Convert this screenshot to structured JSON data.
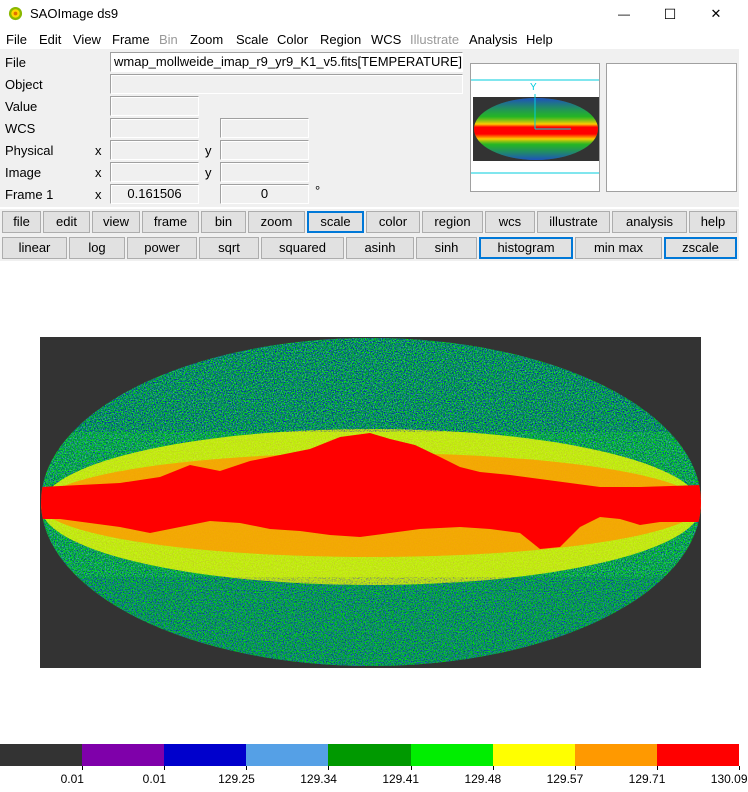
{
  "window": {
    "title": "SAOImage ds9",
    "minimize_glyph": "—",
    "maximize_glyph": "☐",
    "close_glyph": "✕"
  },
  "menu": [
    "File",
    "Edit",
    "View",
    "Frame",
    "Bin",
    "Zoom",
    "Scale",
    "Color",
    "Region",
    "WCS",
    "Illustrate",
    "Analysis",
    "Help"
  ],
  "menu_disabled": [
    "Bin",
    "Illustrate"
  ],
  "info": {
    "file_label": "File",
    "file_value": "wmap_mollweide_imap_r9_yr9_K1_v5.fits[TEMPERATURE]",
    "object_label": "Object",
    "object_value": "",
    "value_label": "Value",
    "value_value": "",
    "wcs_label": "WCS",
    "physical_label": "Physical",
    "image_label": "Image",
    "frame_label": "Frame 1",
    "x_label": "x",
    "y_label": "y",
    "frame_x_value": "0.161506",
    "frame_angle_value": "0",
    "degree_symbol": "°"
  },
  "panner": {
    "compass_label": "Y"
  },
  "button_bar_main": [
    "file",
    "edit",
    "view",
    "frame",
    "bin",
    "zoom",
    "scale",
    "color",
    "region",
    "wcs",
    "illustrate",
    "analysis",
    "help"
  ],
  "button_bar_main_active": "scale",
  "button_bar_scale": [
    "linear",
    "log",
    "power",
    "sqrt",
    "squared",
    "asinh",
    "sinh",
    "histogram",
    "min max",
    "zscale"
  ],
  "button_bar_scale_active": [
    "histogram",
    "zscale"
  ],
  "colorbar": {
    "colors": [
      "#333333",
      "#7f00aa",
      "#0000cc",
      "#55a0e6",
      "#009900",
      "#00ee00",
      "#ffff00",
      "#ff9900",
      "#ff0000"
    ],
    "labels": [
      "0.01",
      "0.01",
      "129.25",
      "129.34",
      "129.41",
      "129.48",
      "129.57",
      "129.71",
      "130.09"
    ]
  },
  "sky_colors": {
    "background": "#333333",
    "red": "#ff0000",
    "orange": "#ff9900",
    "yellow": "#ffff00",
    "green": "#00ee00",
    "dark_green": "#009900",
    "light_blue": "#55a0e6",
    "blue": "#0000cc"
  }
}
